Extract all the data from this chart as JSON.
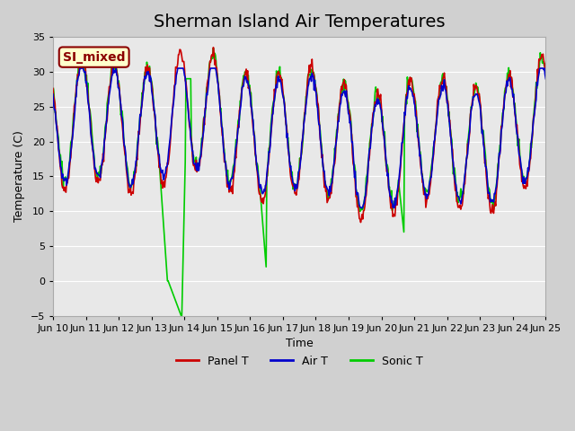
{
  "title": "Sherman Island Air Temperatures",
  "xlabel": "Time",
  "ylabel": "Temperature (C)",
  "ylim": [
    -5,
    35
  ],
  "xlim": [
    0,
    15
  ],
  "x_tick_labels": [
    "Jun 10",
    "Jun 11",
    "Jun 12",
    "Jun 13",
    "Jun 14",
    "Jun 15",
    "Jun 16",
    "Jun 17",
    "Jun 18",
    "Jun 19",
    "Jun 20",
    "Jun 21",
    "Jun 22",
    "Jun 23",
    "Jun 24",
    "Jun 25"
  ],
  "x_tick_positions": [
    0,
    1,
    2,
    3,
    4,
    5,
    6,
    7,
    8,
    9,
    10,
    11,
    12,
    13,
    14,
    15
  ],
  "annotation_text": "SI_mixed",
  "annotation_bg": "#ffffcc",
  "annotation_border": "#8b0000",
  "annotation_text_color": "#8b0000",
  "panel_color": "#cc0000",
  "air_color": "#0000cc",
  "sonic_color": "#00cc00",
  "bg_color": "#e8e8e8",
  "grid_color": "#ffffff",
  "title_fontsize": 14
}
